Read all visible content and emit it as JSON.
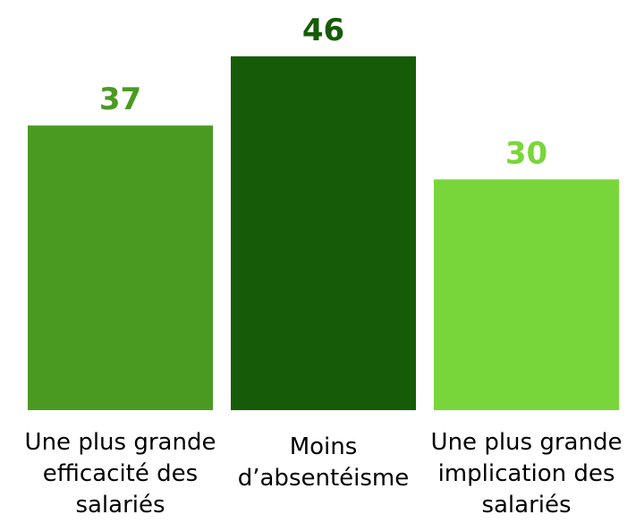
{
  "chart_data": {
    "type": "bar",
    "categories": [
      "Une plus grande efficacité des salariés",
      "Moins d’absentéisme",
      "Une plus grande implication des salariés"
    ],
    "values": [
      37,
      46,
      30
    ],
    "colors": [
      "#4a9a22",
      "#165c08",
      "#79d63a"
    ]
  }
}
